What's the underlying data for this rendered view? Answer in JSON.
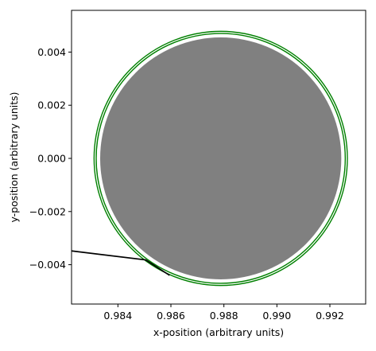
{
  "chart_data": {
    "type": "line",
    "title": "",
    "xlabel": "x-position (arbitrary units)",
    "ylabel": "y-position (arbitrary units)",
    "xlim": [
      0.98225,
      0.99335
    ],
    "ylim": [
      -0.00548,
      0.00557
    ],
    "grid": false,
    "x_ticks": [
      0.984,
      0.986,
      0.988,
      0.99,
      0.992
    ],
    "x_tick_labels": [
      "0.984",
      "0.986",
      "0.988",
      "0.990",
      "0.992"
    ],
    "y_ticks": [
      0.004,
      0.002,
      0.0,
      -0.002,
      -0.004
    ],
    "y_tick_labels": [
      "0.004",
      "0.002",
      "0.000",
      "−0.002",
      "−0.004"
    ],
    "series": [
      {
        "kind": "disk",
        "center": [
          0.98788,
          0.0
        ],
        "radius": 0.00455,
        "color": "#808080"
      },
      {
        "kind": "ring",
        "center": [
          0.98788,
          0.0
        ],
        "radius": 0.00478,
        "color": "#008000"
      },
      {
        "kind": "ring",
        "center": [
          0.98788,
          0.0
        ],
        "radius": 0.0047,
        "color": "#008000"
      },
      {
        "kind": "path",
        "color": "#000000",
        "x": [
          0.98225,
          0.98505,
          0.98595
        ],
        "y": [
          -0.00348,
          -0.00382,
          -0.0044
        ]
      }
    ]
  }
}
